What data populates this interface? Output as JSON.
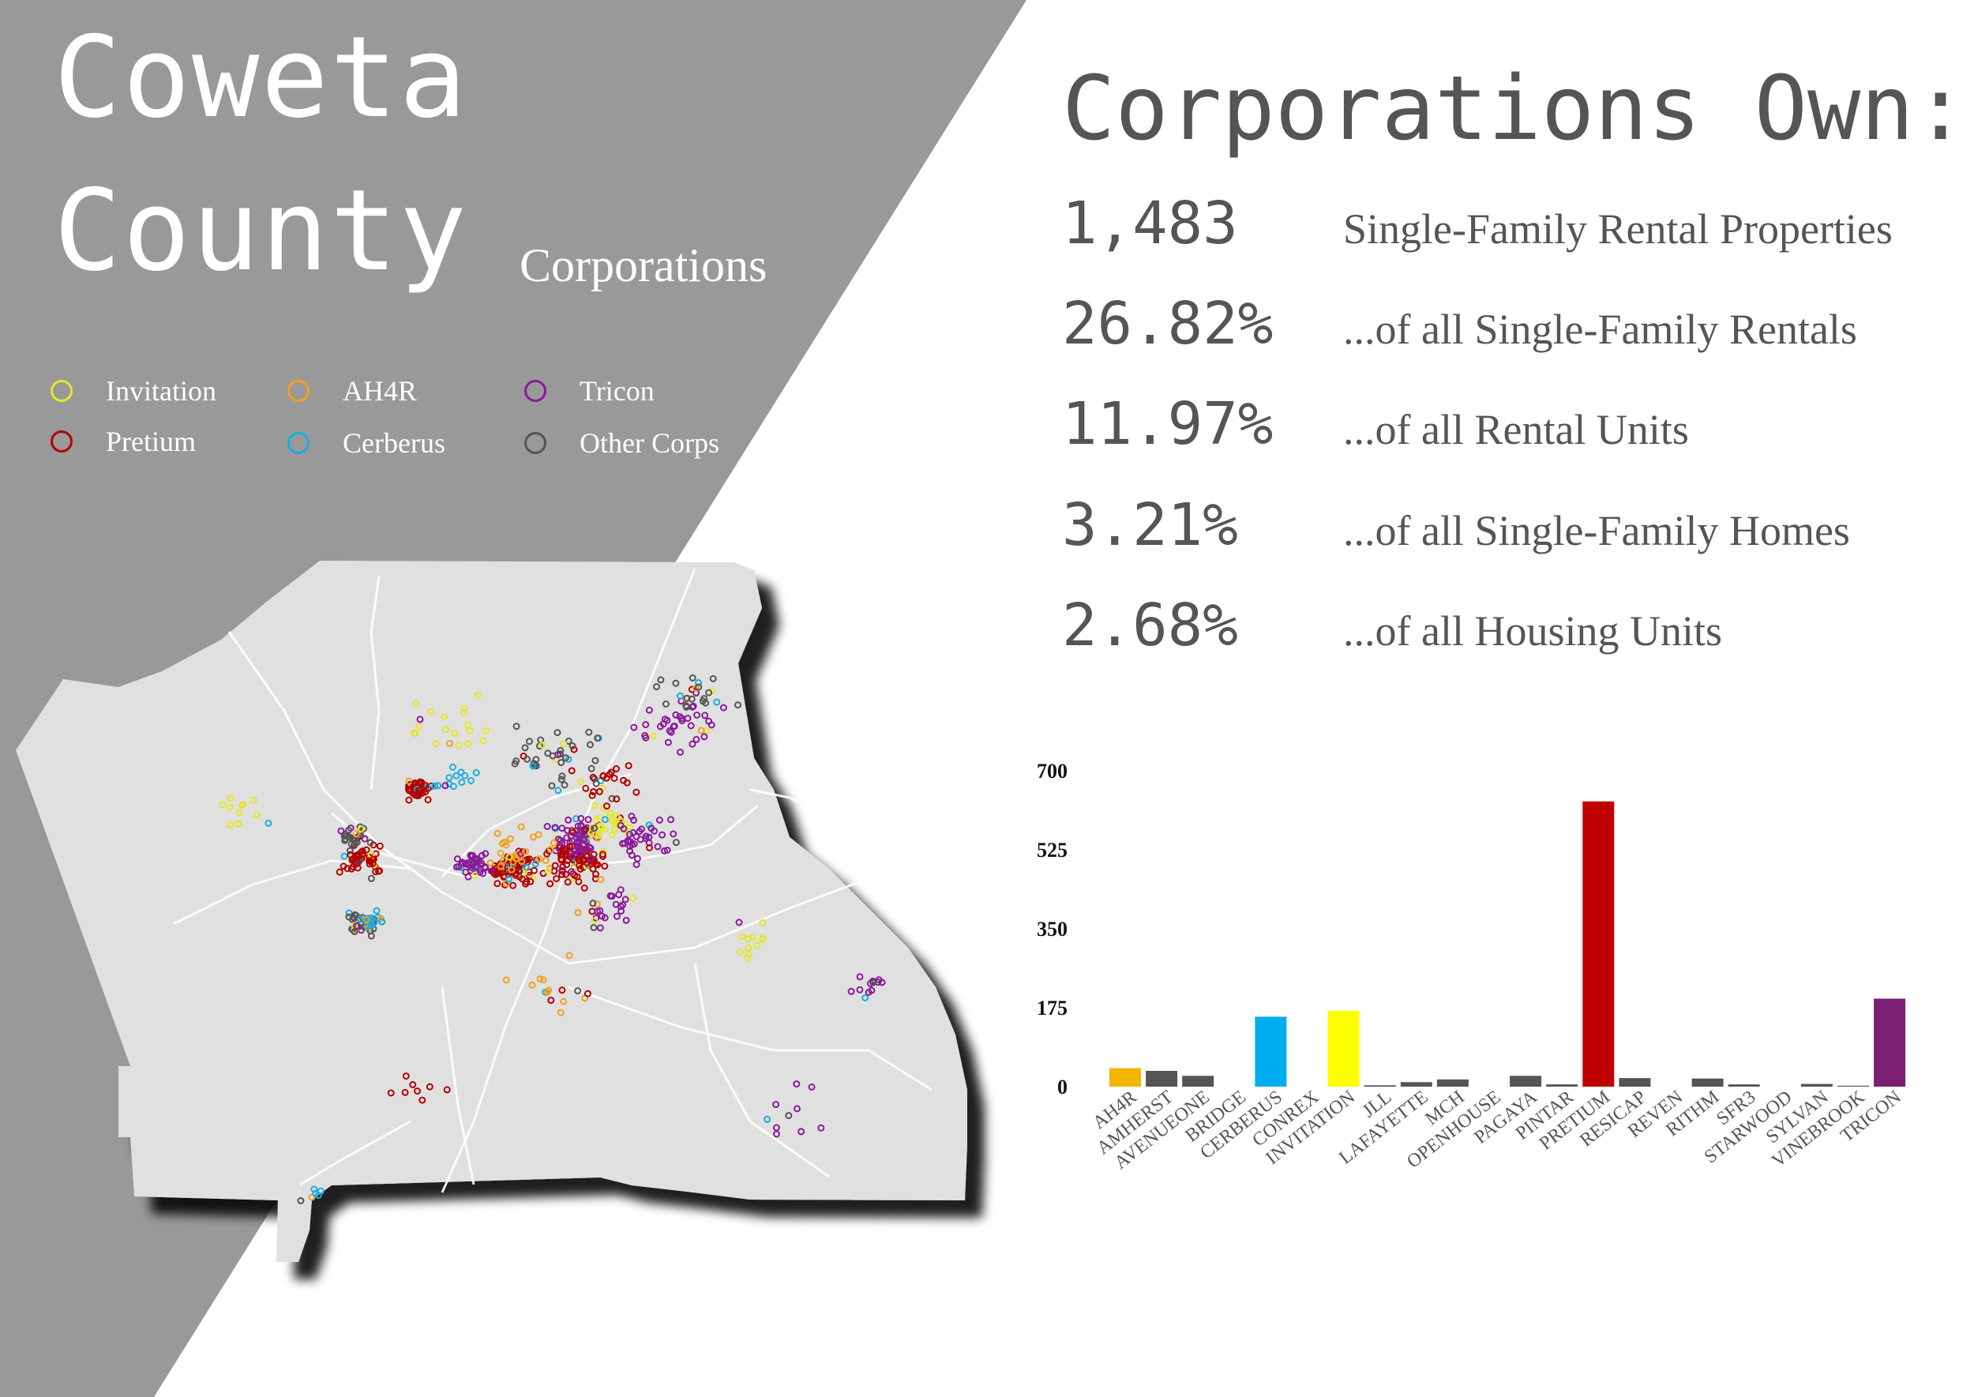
{
  "title": {
    "line1": "Coweta",
    "line2": "County",
    "subtitle": "Corporations"
  },
  "legend": [
    {
      "label": "Invitation",
      "color": "#e6e62e"
    },
    {
      "label": "Pretium",
      "color": "#b30000"
    },
    {
      "label": "AH4R",
      "color": "#f0a020"
    },
    {
      "label": "Cerberus",
      "color": "#18aee0"
    },
    {
      "label": "Tricon",
      "color": "#8a1a9a"
    },
    {
      "label": "Other Corps",
      "color": "#555555"
    }
  ],
  "stats": {
    "heading": "Corporations Own:",
    "rows": [
      {
        "value": "1,483",
        "label": "Single-Family Rental Properties"
      },
      {
        "value": "26.82%",
        "label": "...of all Single-Family Rentals"
      },
      {
        "value": "11.97%",
        "label": "...of all Rental Units"
      },
      {
        "value": "3.21%",
        "label": "...of all Single-Family Homes"
      },
      {
        "value": "2.68%",
        "label": "...of all Housing Units"
      }
    ]
  },
  "colors": {
    "panel": "#999999",
    "map": "#e0e0e0",
    "text_dark": "#555555"
  },
  "chart_data": {
    "type": "bar",
    "categories": [
      "AH4R",
      "AMHERST",
      "AVENUEONE",
      "BRIDGE",
      "CERBERUS",
      "CONREX",
      "INVITATION",
      "JLL",
      "LAFAYETTE",
      "MCH",
      "OPENHOUSE",
      "PAGAYA",
      "PINTAR",
      "PRETIUM",
      "RESICAP",
      "REVEN",
      "RITHM",
      "SFR3",
      "STARWOOD",
      "SYLVAN",
      "VINEBROOK",
      "TRICON"
    ],
    "values": [
      41,
      35,
      24,
      0,
      155,
      0,
      168,
      3,
      10,
      16,
      0,
      24,
      5,
      632,
      19,
      0,
      18,
      5,
      0,
      6,
      2,
      195
    ],
    "colors": [
      "#f5b400",
      "#555555",
      "#555555",
      "#555555",
      "#00aeef",
      "#555555",
      "#ffff00",
      "#555555",
      "#555555",
      "#555555",
      "#555555",
      "#555555",
      "#555555",
      "#c00000",
      "#555555",
      "#555555",
      "#555555",
      "#555555",
      "#555555",
      "#555555",
      "#555555",
      "#7a1f72"
    ],
    "yticks": [
      0,
      175,
      350,
      525,
      700
    ],
    "ylim": [
      0,
      700
    ],
    "title": "",
    "xlabel": "",
    "ylabel": ""
  }
}
